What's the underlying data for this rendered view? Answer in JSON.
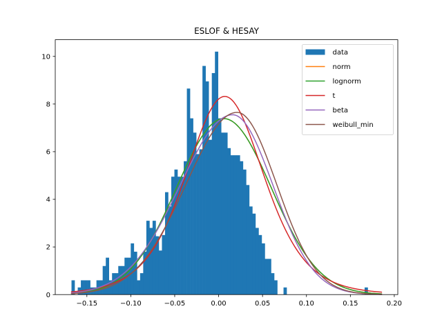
{
  "chart_data": {
    "type": "bar",
    "title": "ESLOF & HESAY",
    "xlabel": "",
    "ylabel": "",
    "xlim": [
      -0.186,
      0.204
    ],
    "ylim": [
      0,
      10.7
    ],
    "grid": false,
    "legend_position": "top-right",
    "x_ticks": [
      -0.15,
      -0.1,
      -0.05,
      0.0,
      0.05,
      0.1,
      0.15,
      0.2
    ],
    "x_tick_labels": [
      "−0.15",
      "−0.10",
      "−0.05",
      "0.00",
      "0.05",
      "0.10",
      "0.15",
      "0.20"
    ],
    "y_ticks": [
      0,
      2,
      4,
      6,
      8,
      10
    ],
    "y_tick_labels": [
      "0",
      "2",
      "4",
      "6",
      "8",
      "10"
    ],
    "histogram": {
      "name": "data",
      "color": "#1f77b4",
      "bin_start": -0.1675,
      "bin_width": 0.00355,
      "values": [
        0.6,
        0,
        0.3,
        0.6,
        0.6,
        0.6,
        0.3,
        0.3,
        0.6,
        0.6,
        1.2,
        1.55,
        0.6,
        0.9,
        0.9,
        1.2,
        1.2,
        1.55,
        1.55,
        2.15,
        1.8,
        0.6,
        0.9,
        1.8,
        3.1,
        2.8,
        3.1,
        2.45,
        1.85,
        2.5,
        4.3,
        3.7,
        4.95,
        5.25,
        4.95,
        4.95,
        5.6,
        8.65,
        7.4,
        6.8,
        5.9,
        6.1,
        9.6,
        8.95,
        6.5,
        9.3,
        10.2,
        7.4,
        6.8,
        6.8,
        6.15,
        5.85,
        5.85,
        5.85,
        5.6,
        5.25,
        4.6,
        3.7,
        3.4,
        2.8,
        2.5,
        2.15,
        1.5,
        1.5,
        0.9,
        0.6,
        0,
        0,
        0.3,
        0,
        0,
        0,
        0,
        0,
        0,
        0,
        0,
        0,
        0,
        0,
        0,
        0,
        0,
        0,
        0,
        0,
        0,
        0,
        0,
        0,
        0,
        0,
        0,
        0,
        0.3
      ]
    },
    "series": [
      {
        "name": "norm",
        "color": "#ff7f0e",
        "dist": "normal",
        "mean": 0.006,
        "sd": 0.054
      },
      {
        "name": "lognorm",
        "color": "#2ca02c",
        "dist": "normal",
        "mean": 0.006,
        "sd": 0.054
      },
      {
        "name": "t",
        "color": "#d62728",
        "dist": "t",
        "loc": 0.007,
        "scale": 0.046,
        "df": 6
      },
      {
        "name": "beta",
        "color": "#9467bd",
        "dist": "skew",
        "peak": 0.016,
        "height": 7.55,
        "left": 0.06,
        "right": 0.046
      },
      {
        "name": "weibull_min",
        "color": "#8c564b",
        "dist": "skew",
        "peak": 0.021,
        "height": 7.65,
        "left": 0.058,
        "right": 0.045
      }
    ]
  }
}
